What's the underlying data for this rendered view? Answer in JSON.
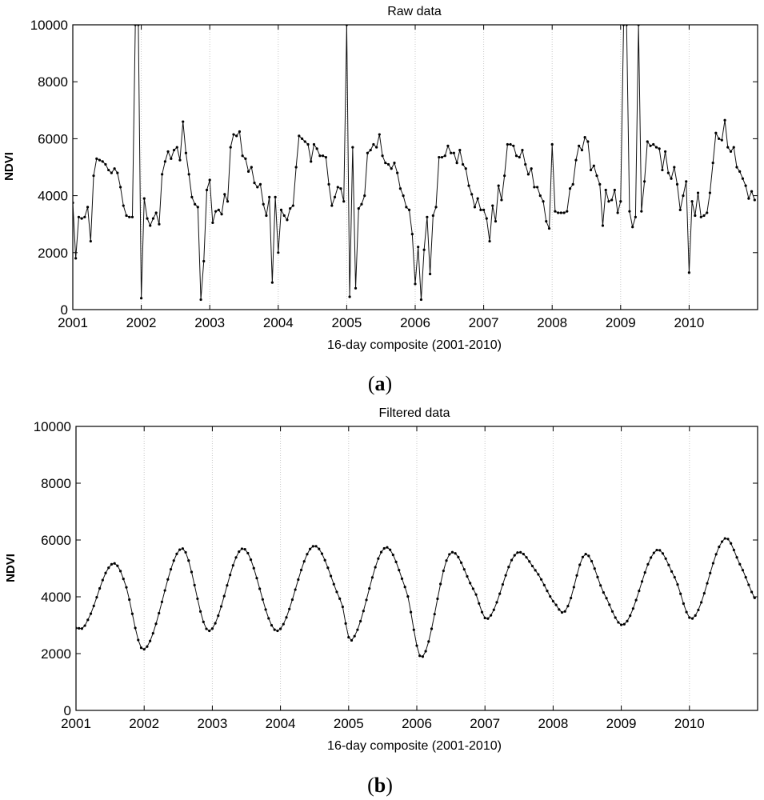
{
  "chart_data": [
    {
      "type": "line",
      "panel_label": "a",
      "title": "Raw data",
      "xlabel": "16-day composite (2001-2010)",
      "ylabel": "NDVI",
      "xlim": [
        2001,
        2011
      ],
      "ylim": [
        0,
        10000
      ],
      "xticks": [
        "2001",
        "2002",
        "2003",
        "2004",
        "2005",
        "2006",
        "2007",
        "2008",
        "2009",
        "2010"
      ],
      "yticks": [
        "0",
        "2000",
        "4000",
        "6000",
        "8000",
        "10000"
      ],
      "grid": "vertical dotted at year ticks",
      "marker": "dot",
      "series": [
        {
          "x": [
            2001.0,
            2001.043,
            2001.087,
            2001.13,
            2001.174,
            2001.217,
            2001.261,
            2001.304,
            2001.348,
            2001.391,
            2001.435,
            2001.478,
            2001.522,
            2001.565,
            2001.609,
            2001.652,
            2001.696,
            2001.739,
            2001.783,
            2001.826,
            2001.87,
            2001.913,
            2001.957,
            2002.0,
            2002.043,
            2002.087,
            2002.13,
            2002.174,
            2002.217,
            2002.261,
            2002.304,
            2002.348,
            2002.391,
            2002.435,
            2002.478,
            2002.522,
            2002.565,
            2002.609,
            2002.652,
            2002.696,
            2002.739,
            2002.783,
            2002.826,
            2002.87,
            2002.913,
            2002.957,
            2003.0,
            2003.043,
            2003.087,
            2003.13,
            2003.174,
            2003.217,
            2003.261,
            2003.304,
            2003.348,
            2003.391,
            2003.435,
            2003.478,
            2003.522,
            2003.565,
            2003.609,
            2003.652,
            2003.696,
            2003.739,
            2003.783,
            2003.826,
            2003.87,
            2003.913,
            2003.957,
            2004.0,
            2004.043,
            2004.087,
            2004.13,
            2004.174,
            2004.217,
            2004.261,
            2004.304,
            2004.348,
            2004.391,
            2004.435,
            2004.478,
            2004.522,
            2004.565,
            2004.609,
            2004.652,
            2004.696,
            2004.739,
            2004.783,
            2004.826,
            2004.87,
            2004.913,
            2004.957,
            2005.0,
            2005.043,
            2005.087,
            2005.13,
            2005.174,
            2005.217,
            2005.261,
            2005.304,
            2005.348,
            2005.391,
            2005.435,
            2005.478,
            2005.522,
            2005.565,
            2005.609,
            2005.652,
            2005.696,
            2005.739,
            2005.783,
            2005.826,
            2005.87,
            2005.913,
            2005.957,
            2006.0,
            2006.043,
            2006.087,
            2006.13,
            2006.174,
            2006.217,
            2006.261,
            2006.304,
            2006.348,
            2006.391,
            2006.435,
            2006.478,
            2006.522,
            2006.565,
            2006.609,
            2006.652,
            2006.696,
            2006.739,
            2006.783,
            2006.826,
            2006.87,
            2006.913,
            2006.957,
            2007.0,
            2007.043,
            2007.087,
            2007.13,
            2007.174,
            2007.217,
            2007.261,
            2007.304,
            2007.348,
            2007.391,
            2007.435,
            2007.478,
            2007.522,
            2007.565,
            2007.609,
            2007.652,
            2007.696,
            2007.739,
            2007.783,
            2007.826,
            2007.87,
            2007.913,
            2007.957,
            2008.0,
            2008.043,
            2008.087,
            2008.13,
            2008.174,
            2008.217,
            2008.261,
            2008.304,
            2008.348,
            2008.391,
            2008.435,
            2008.478,
            2008.522,
            2008.565,
            2008.609,
            2008.652,
            2008.696,
            2008.739,
            2008.783,
            2008.826,
            2008.87,
            2008.913,
            2008.957,
            2009.0,
            2009.043,
            2009.087,
            2009.13,
            2009.174,
            2009.217,
            2009.261,
            2009.304,
            2009.348,
            2009.391,
            2009.435,
            2009.478,
            2009.522,
            2009.565,
            2009.609,
            2009.652,
            2009.696,
            2009.739,
            2009.783,
            2009.826,
            2009.87,
            2009.913,
            2009.957,
            2010.0,
            2010.043,
            2010.087,
            2010.13,
            2010.174,
            2010.217,
            2010.261,
            2010.304,
            2010.348,
            2010.391,
            2010.435,
            2010.478,
            2010.522,
            2010.565,
            2010.609,
            2010.652,
            2010.696,
            2010.739,
            2010.783,
            2010.826,
            2010.87,
            2010.913,
            2010.957
          ],
          "y": [
            3750,
            1800,
            3250,
            3200,
            3250,
            3600,
            2400,
            4700,
            5300,
            5250,
            5200,
            5100,
            4900,
            4800,
            4950,
            4800,
            4300,
            3650,
            3300,
            3250,
            3250,
            10000,
            10000,
            400,
            3900,
            3200,
            2950,
            3200,
            3400,
            3000,
            4750,
            5200,
            5550,
            5300,
            5600,
            5700,
            5250,
            6600,
            5500,
            4750,
            3950,
            3700,
            3600,
            350,
            1700,
            4200,
            4550,
            3050,
            3450,
            3500,
            3350,
            4050,
            3800,
            5700,
            6150,
            6100,
            6250,
            5400,
            5300,
            4850,
            5000,
            4450,
            4300,
            4400,
            3700,
            3300,
            3950,
            950,
            3950,
            2000,
            3500,
            3300,
            3150,
            3550,
            3650,
            5000,
            6100,
            6000,
            5900,
            5800,
            5200,
            5800,
            5650,
            5400,
            5400,
            5350,
            4400,
            3650,
            3950,
            4300,
            4250,
            3800,
            10000,
            450,
            5700,
            750,
            3550,
            3700,
            4000,
            5500,
            5600,
            5800,
            5700,
            6150,
            5400,
            5150,
            5100,
            4950,
            5150,
            4800,
            4250,
            4000,
            3600,
            3500,
            2650,
            900,
            2200,
            350,
            2100,
            3250,
            1250,
            3300,
            3600,
            5350,
            5350,
            5400,
            5750,
            5500,
            5500,
            5150,
            5600,
            5100,
            4950,
            4350,
            4050,
            3600,
            3900,
            3500,
            3500,
            3200,
            2400,
            3650,
            3100,
            4350,
            3850,
            4700,
            5800,
            5800,
            5750,
            5400,
            5350,
            5600,
            5100,
            4750,
            4950,
            4300,
            4300,
            4000,
            3800,
            3100,
            2850,
            5800,
            3450,
            3400,
            3400,
            3400,
            3450,
            4250,
            4400,
            5250,
            5750,
            5600,
            6050,
            5900,
            4900,
            5050,
            4700,
            4400,
            2950,
            4200,
            3800,
            3850,
            4200,
            3400,
            3800,
            10000,
            10000,
            3450,
            2900,
            3250,
            10000,
            3450,
            4500,
            5900,
            5750,
            5800,
            5700,
            5650,
            4900,
            5550,
            4800,
            4600,
            5000,
            4400,
            3500,
            4000,
            4500,
            1300,
            3800,
            3300,
            4100,
            3250,
            3300,
            3400,
            4100,
            5150,
            6200,
            6000,
            5950,
            6650,
            5700,
            5550,
            5700,
            5000,
            4850,
            4600,
            4350,
            3900,
            4150,
            3850
          ]
        }
      ]
    },
    {
      "type": "line",
      "panel_label": "b",
      "title": "Filtered data",
      "xlabel": "16-day composite (2001-2010)",
      "ylabel": "NDVI",
      "xlim": [
        2001,
        2011
      ],
      "ylim": [
        0,
        10000
      ],
      "xticks": [
        "2001",
        "2002",
        "2003",
        "2004",
        "2005",
        "2006",
        "2007",
        "2008",
        "2009",
        "2010"
      ],
      "yticks": [
        "0",
        "2000",
        "4000",
        "6000",
        "8000",
        "10000"
      ],
      "grid": "vertical dotted at year ticks",
      "marker": "dot",
      "smooth_anchors": {
        "x": [
          2001.0,
          2001.15,
          2001.5,
          2001.7,
          2002.0,
          2002.55,
          2002.95,
          2003.45,
          2003.95,
          2004.48,
          2004.9,
          2005.05,
          2005.52,
          2005.85,
          2006.08,
          2006.48,
          2006.85,
          2007.05,
          2007.45,
          2007.75,
          2008.05,
          2008.2,
          2008.47,
          2008.75,
          2009.05,
          2009.5,
          2009.78,
          2010.05,
          2010.5,
          2010.75,
          2010.99
        ],
        "y": [
          2900,
          3100,
          5080,
          4600,
          2150,
          5700,
          2800,
          5700,
          2800,
          5780,
          3800,
          2500,
          5700,
          4200,
          1880,
          5500,
          4200,
          3250,
          5500,
          4900,
          3700,
          3600,
          5500,
          4100,
          3050,
          5600,
          4700,
          3250,
          6000,
          5100,
          3850
        ]
      }
    }
  ]
}
